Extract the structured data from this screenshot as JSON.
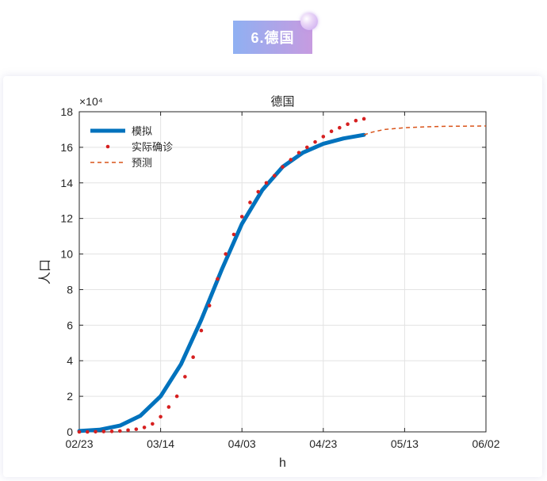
{
  "section": {
    "badge_label": "6.德国"
  },
  "colors": {
    "model": "#0072bd",
    "actual": "#d62020",
    "forecast": "#d95319",
    "badge_from": "#8fb0f2",
    "badge_to": "#c79be0"
  },
  "chart_data": {
    "type": "line",
    "title": "德国",
    "xlabel": "h",
    "ylabel": "人口",
    "y_exponent_label": "×10⁴",
    "xlim_days": [
      0,
      100
    ],
    "ylim": [
      0,
      18
    ],
    "x_ticks": [
      {
        "day": 0,
        "label": "02/23"
      },
      {
        "day": 20,
        "label": "03/14"
      },
      {
        "day": 40,
        "label": "04/03"
      },
      {
        "day": 60,
        "label": "04/23"
      },
      {
        "day": 80,
        "label": "05/13"
      },
      {
        "day": 100,
        "label": "06/02"
      }
    ],
    "y_ticks": [
      0,
      2,
      4,
      6,
      8,
      10,
      12,
      14,
      16,
      18
    ],
    "grid": true,
    "legend_position": "top-left",
    "series": [
      {
        "name": "模拟",
        "style": "thick-solid",
        "x": [
          0,
          5,
          10,
          15,
          20,
          25,
          30,
          35,
          40,
          45,
          50,
          55,
          60,
          65,
          70
        ],
        "y": [
          0.05,
          0.12,
          0.35,
          0.9,
          2.0,
          3.8,
          6.3,
          9.1,
          11.7,
          13.6,
          14.9,
          15.7,
          16.2,
          16.5,
          16.7
        ]
      },
      {
        "name": "实际确诊",
        "style": "dots",
        "x": [
          0,
          2,
          4,
          6,
          8,
          10,
          12,
          14,
          16,
          18,
          20,
          22,
          24,
          26,
          28,
          30,
          32,
          34,
          36,
          38,
          40,
          42,
          44,
          46,
          48,
          50,
          52,
          54,
          56,
          58,
          60,
          62,
          64,
          66,
          68,
          70
        ],
        "y": [
          0.0,
          0.0,
          0.01,
          0.02,
          0.03,
          0.05,
          0.1,
          0.15,
          0.25,
          0.45,
          0.85,
          1.4,
          2.0,
          3.1,
          4.2,
          5.7,
          7.1,
          8.6,
          10.0,
          11.1,
          12.1,
          12.9,
          13.5,
          14.0,
          14.4,
          14.9,
          15.3,
          15.7,
          16.0,
          16.3,
          16.6,
          16.9,
          17.1,
          17.3,
          17.5,
          17.6
        ]
      },
      {
        "name": "预测",
        "style": "dashed",
        "x": [
          70,
          72,
          75,
          80,
          85,
          90,
          95,
          100
        ],
        "y": [
          16.7,
          16.85,
          17.0,
          17.1,
          17.15,
          17.18,
          17.19,
          17.2
        ]
      }
    ]
  }
}
